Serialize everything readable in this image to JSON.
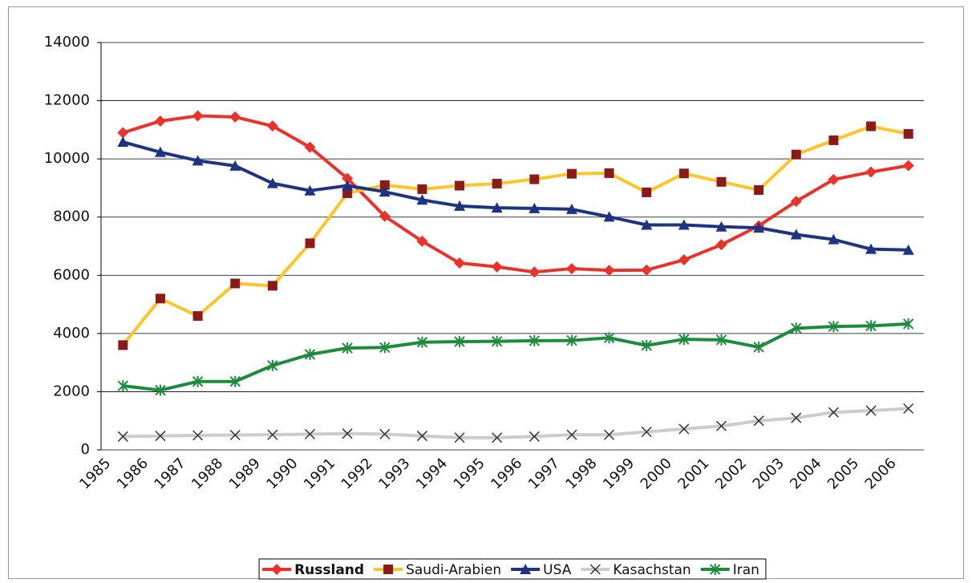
{
  "chart_data": {
    "type": "line",
    "categories": [
      "1985",
      "1986",
      "1987",
      "1988",
      "1989",
      "1990",
      "1991",
      "1992",
      "1993",
      "1994",
      "1995",
      "1996",
      "1997",
      "1998",
      "1999",
      "2000",
      "2001",
      "2002",
      "2003",
      "2004",
      "2005",
      "2006"
    ],
    "ylim": [
      0,
      14000
    ],
    "yticks": [
      0,
      2000,
      4000,
      6000,
      8000,
      10000,
      12000,
      14000
    ],
    "grid": true,
    "legend": "bottom",
    "series": [
      {
        "name": "Russland",
        "color": "#e8322a",
        "marker": "diamond",
        "marker_color": "#e8322a",
        "values": [
          10900,
          11300,
          11480,
          11440,
          11130,
          10400,
          9330,
          8030,
          7170,
          6420,
          6290,
          6110,
          6230,
          6170,
          6180,
          6530,
          7050,
          7700,
          8540,
          9290,
          9550,
          9770
        ]
      },
      {
        "name": "Saudi-Arabien",
        "color": "#fcc62b",
        "marker": "square",
        "marker_color": "#8b1a1a",
        "values": [
          3600,
          5200,
          4600,
          5720,
          5640,
          7100,
          8820,
          9100,
          8960,
          9080,
          9150,
          9300,
          9490,
          9510,
          8850,
          9500,
          9210,
          8930,
          10150,
          10640,
          11120,
          10860
        ]
      },
      {
        "name": "USA",
        "color": "#1f3480",
        "marker": "triangle",
        "marker_color": "#1f3480",
        "values": [
          10580,
          10230,
          9940,
          9760,
          9160,
          8910,
          9080,
          8870,
          8590,
          8380,
          8320,
          8300,
          8270,
          8010,
          7730,
          7730,
          7670,
          7630,
          7400,
          7230,
          6900,
          6870
        ]
      },
      {
        "name": "Kasachstan",
        "color": "#cccccc",
        "marker": "x",
        "marker_color": "#333333",
        "values": [
          460,
          480,
          500,
          510,
          520,
          540,
          560,
          540,
          480,
          420,
          420,
          460,
          520,
          520,
          620,
          720,
          820,
          1000,
          1100,
          1290,
          1350,
          1420
        ]
      },
      {
        "name": "Iran",
        "color": "#1e8a3e",
        "marker": "asterisk",
        "marker_color": "#1e8a3e",
        "values": [
          2200,
          2050,
          2350,
          2350,
          2900,
          3280,
          3500,
          3520,
          3700,
          3720,
          3730,
          3750,
          3760,
          3850,
          3590,
          3800,
          3780,
          3530,
          4180,
          4240,
          4260,
          4330
        ]
      }
    ]
  }
}
